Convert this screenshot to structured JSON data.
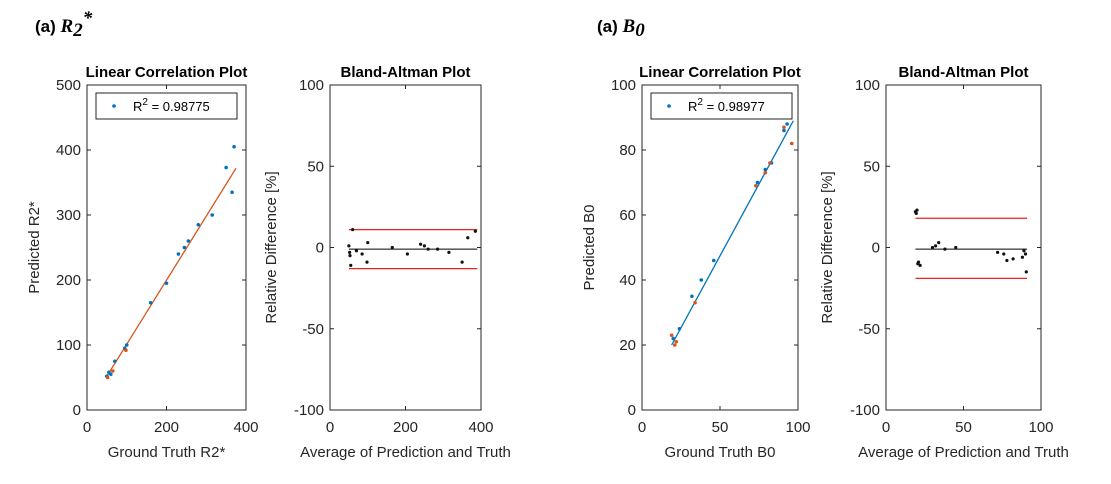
{
  "chart_data": [
    {
      "type": "scatter",
      "panel_label": "(a) ",
      "panel_symbol": "R",
      "panel_sub": "2",
      "panel_sup": "*",
      "title": "Linear Correlation Plot",
      "xlabel": "Ground Truth R2*",
      "ylabel": "Predicted R2*",
      "xlim": [
        0,
        400
      ],
      "ylim": [
        0,
        500
      ],
      "xticks": [
        0,
        200,
        400
      ],
      "yticks": [
        0,
        100,
        200,
        300,
        400,
        500
      ],
      "legend": {
        "prefix": "R",
        "sup": "2",
        "value": " = 0.98775"
      },
      "fit_line": {
        "color": "#D95319",
        "x": [
          48,
          375
        ],
        "y": [
          50,
          372
        ]
      },
      "points_blue": {
        "color": "#0072BD",
        "x": [
          50,
          55,
          60,
          70,
          95,
          100,
          160,
          200,
          230,
          245,
          255,
          280,
          315,
          350,
          365,
          370
        ],
        "y": [
          52,
          58,
          55,
          75,
          95,
          100,
          165,
          195,
          240,
          250,
          260,
          285,
          300,
          373,
          335,
          405
        ]
      },
      "points_red": {
        "color": "#D95319",
        "x": [
          52,
          65,
          98
        ],
        "y": [
          50,
          60,
          92
        ]
      }
    },
    {
      "type": "bland-altman",
      "title": "Bland-Altman Plot",
      "xlabel": "Average of Prediction and Truth",
      "ylabel": "Relative Difference [%]",
      "xlim": [
        0,
        400
      ],
      "ylim": [
        -100,
        100
      ],
      "xticks": [
        0,
        200,
        400
      ],
      "yticks": [
        -100,
        -50,
        0,
        50,
        100
      ],
      "mean": -1,
      "upper_loa": 11,
      "lower_loa": -13,
      "line_x": [
        50,
        390
      ],
      "points": {
        "x": [
          50,
          52,
          53,
          55,
          60,
          70,
          85,
          98,
          100,
          165,
          205,
          240,
          250,
          260,
          285,
          315,
          350,
          365,
          385
        ],
        "y": [
          1,
          -3,
          -5,
          -11,
          11,
          -2,
          -4,
          -9,
          3,
          0,
          -4,
          2,
          1,
          -1,
          -1,
          -3,
          -9,
          6,
          10
        ]
      }
    },
    {
      "type": "scatter",
      "panel_label": "(a) ",
      "panel_symbol": "B",
      "panel_sub": "0",
      "panel_sup": "",
      "title": "Linear Correlation Plot",
      "xlabel": "Ground Truth B0",
      "ylabel": "Predicted B0",
      "xlim": [
        0,
        100
      ],
      "ylim": [
        0,
        100
      ],
      "xticks": [
        0,
        50,
        100
      ],
      "yticks": [
        0,
        20,
        40,
        60,
        80,
        100
      ],
      "legend": {
        "prefix": "R",
        "sup": "2",
        "value": " = 0.98977"
      },
      "fit_line": {
        "color": "#0072BD",
        "x": [
          19,
          97
        ],
        "y": [
          20,
          89
        ]
      },
      "points_blue": {
        "color": "#0072BD",
        "x": [
          20,
          24,
          32,
          38,
          46,
          74,
          79,
          83,
          91,
          93
        ],
        "y": [
          22,
          25,
          35,
          40,
          46,
          70,
          74,
          76,
          86,
          88
        ]
      },
      "points_red": {
        "color": "#D95319",
        "x": [
          19,
          21,
          22,
          34,
          73,
          79,
          82,
          91,
          92,
          96
        ],
        "y": [
          23,
          20,
          21,
          33,
          69,
          73,
          76,
          87,
          90,
          82
        ]
      }
    },
    {
      "type": "bland-altman",
      "title": "Bland-Altman Plot",
      "xlabel": "Average of Prediction and Truth",
      "ylabel": "Relative Difference [%]",
      "xlim": [
        0,
        100
      ],
      "ylim": [
        -100,
        100
      ],
      "xticks": [
        0,
        50,
        100
      ],
      "yticks": [
        -100,
        -50,
        0,
        50,
        100
      ],
      "mean": -1,
      "upper_loa": 18,
      "lower_loa": -19,
      "line_x": [
        19,
        91
      ],
      "points": {
        "x": [
          19,
          19.5,
          20,
          20.5,
          21,
          22,
          30,
          32,
          34,
          38,
          45,
          72,
          76,
          78,
          82,
          88,
          89,
          90,
          90.5
        ],
        "y": [
          22,
          21,
          23,
          -10,
          -9,
          -11,
          0,
          1,
          3,
          -1,
          0,
          -3,
          -4,
          -8,
          -7,
          -6,
          -2,
          -4,
          -15
        ]
      }
    }
  ]
}
